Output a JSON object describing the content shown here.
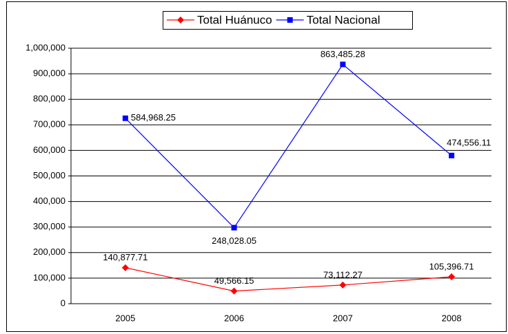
{
  "chart_data": {
    "type": "line",
    "stacked": true,
    "grid": true,
    "legend": "top",
    "categories": [
      "2005",
      "2006",
      "2007",
      "2008"
    ],
    "series": [
      {
        "name": "Total Huánuco",
        "color": "#ff0000",
        "marker": "diamond",
        "values": [
          140877.71,
          49566.15,
          73112.27,
          105396.71
        ],
        "value_labels": [
          "140,877.71",
          "49,566.15",
          "73,112.27",
          "105,396.71"
        ]
      },
      {
        "name": "Total Nacional",
        "color": "#0000ff",
        "marker": "square",
        "values": [
          584968.25,
          248028.05,
          863485.28,
          474556.11
        ],
        "value_labels": [
          "584,968.25",
          "248,028.05",
          "863,485.28",
          "474,556.11"
        ]
      }
    ],
    "ylim": [
      0,
      1000000
    ],
    "yticks": [
      0,
      {
        "value": 100000,
        "label": "100,000"
      },
      {
        "value": 200000,
        "label": "200,000"
      },
      {
        "value": 300000,
        "label": "300,000"
      },
      {
        "value": 400000,
        "label": "400,000"
      },
      {
        "value": 500000,
        "label": "500,000"
      },
      {
        "value": 600000,
        "label": "600,000"
      },
      {
        "value": 700000,
        "label": "700,000"
      },
      {
        "value": 800000,
        "label": "800,000"
      },
      {
        "value": 900000,
        "label": "900,000"
      },
      {
        "value": 1000000,
        "label": "1,000,000"
      }
    ]
  }
}
